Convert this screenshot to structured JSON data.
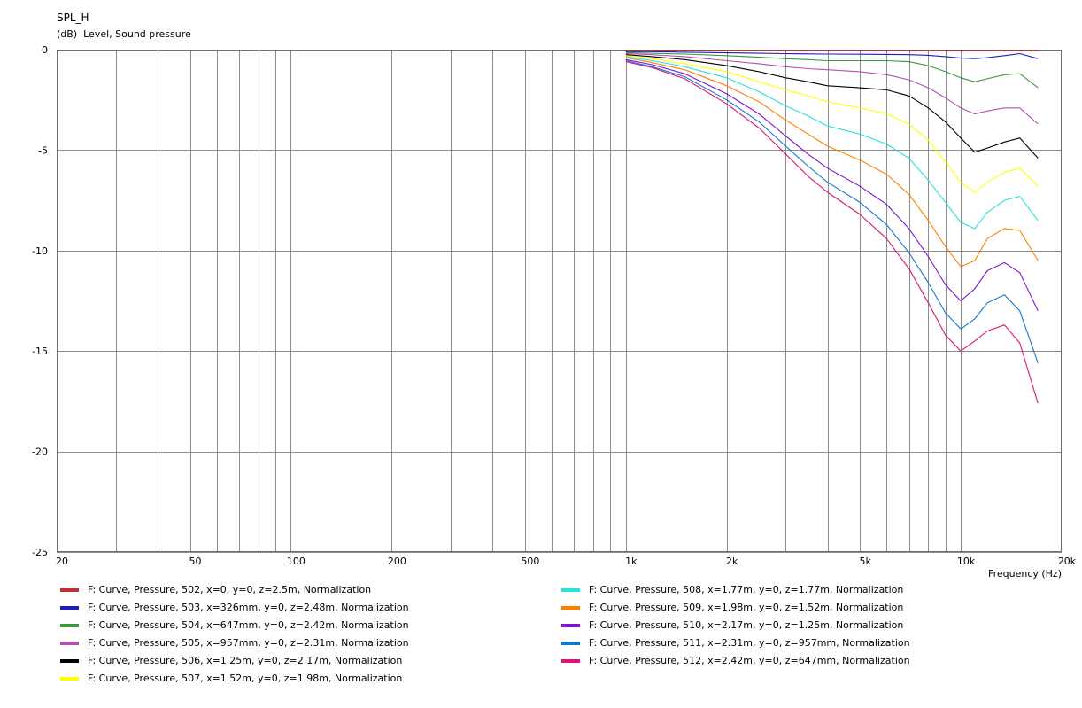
{
  "chart_data": {
    "type": "line",
    "title": "SPL_H",
    "ylabel": "(dB)  Level, Sound pressure",
    "xlabel": "Frequency  (Hz)",
    "xscale": "log",
    "xlim": [
      20,
      20000
    ],
    "ylim": [
      -25,
      0
    ],
    "grid": true,
    "legend_position": "bottom",
    "x_tick_labels": [
      {
        "value": 20,
        "label": "20"
      },
      {
        "value": 50,
        "label": "50"
      },
      {
        "value": 100,
        "label": "100"
      },
      {
        "value": 200,
        "label": "200"
      },
      {
        "value": 500,
        "label": "500"
      },
      {
        "value": 1000,
        "label": "1k"
      },
      {
        "value": 2000,
        "label": "2k"
      },
      {
        "value": 5000,
        "label": "5k"
      },
      {
        "value": 10000,
        "label": "10k"
      },
      {
        "value": 20000,
        "label": "20k"
      }
    ],
    "y_tick_labels": [
      {
        "value": 0,
        "label": "0"
      },
      {
        "value": -5,
        "label": "-5"
      },
      {
        "value": -10,
        "label": "-10"
      },
      {
        "value": -15,
        "label": "-15"
      },
      {
        "value": -20,
        "label": "-20"
      },
      {
        "value": -25,
        "label": "-25"
      }
    ],
    "x": [
      1000,
      1200,
      1500,
      2000,
      2500,
      3000,
      3500,
      4000,
      5000,
      6000,
      7000,
      8000,
      9000,
      10000,
      11000,
      12000,
      13500,
      15000,
      17000
    ],
    "series": [
      {
        "name": "F: Curve, Pressure, 502, x=0, y=0, z=2.5m, Normalization",
        "color": "#c0303a",
        "values": [
          -0.02,
          -0.02,
          -0.02,
          -0.02,
          -0.02,
          -0.02,
          -0.02,
          -0.02,
          -0.02,
          -0.02,
          -0.02,
          -0.02,
          -0.02,
          -0.02,
          -0.02,
          -0.02,
          -0.02,
          -0.02,
          -0.02
        ]
      },
      {
        "name": "F: Curve, Pressure, 503, x=326mm, y=0, z=2.48m, Normalization",
        "color": "#1e1ebe",
        "values": [
          -0.1,
          -0.1,
          -0.13,
          -0.16,
          -0.18,
          -0.2,
          -0.21,
          -0.22,
          -0.23,
          -0.24,
          -0.25,
          -0.28,
          -0.35,
          -0.42,
          -0.45,
          -0.4,
          -0.3,
          -0.2,
          -0.45
        ]
      },
      {
        "name": "F: Curve, Pressure, 504, x=647mm, y=0, z=2.42m, Normalization",
        "color": "#3c963c",
        "values": [
          -0.15,
          -0.18,
          -0.22,
          -0.3,
          -0.38,
          -0.45,
          -0.5,
          -0.55,
          -0.55,
          -0.55,
          -0.6,
          -0.8,
          -1.1,
          -1.4,
          -1.6,
          -1.45,
          -1.25,
          -1.2,
          -1.9
        ]
      },
      {
        "name": "F: Curve, Pressure, 505, x=957mm, y=0, z=2.31m, Normalization",
        "color": "#b450b4",
        "values": [
          -0.2,
          -0.25,
          -0.35,
          -0.55,
          -0.7,
          -0.85,
          -0.95,
          -1.0,
          -1.1,
          -1.25,
          -1.5,
          -1.9,
          -2.4,
          -2.9,
          -3.2,
          -3.05,
          -2.9,
          -2.9,
          -3.7
        ]
      },
      {
        "name": "F: Curve, Pressure, 506, x=1.25m, y=0, z=2.17m, Normalization",
        "color": "#000000",
        "values": [
          -0.25,
          -0.35,
          -0.5,
          -0.8,
          -1.1,
          -1.4,
          -1.6,
          -1.8,
          -1.9,
          -2.0,
          -2.3,
          -2.9,
          -3.6,
          -4.4,
          -5.1,
          -4.9,
          -4.6,
          -4.4,
          -5.4
        ]
      },
      {
        "name": "F: Curve, Pressure, 507, x=1.52m, y=0, z=1.98m, Normalization",
        "color": "#ffff00",
        "values": [
          -0.3,
          -0.45,
          -0.7,
          -1.1,
          -1.6,
          -2.0,
          -2.3,
          -2.6,
          -2.9,
          -3.2,
          -3.7,
          -4.5,
          -5.6,
          -6.6,
          -7.1,
          -6.6,
          -6.1,
          -5.9,
          -6.8
        ]
      },
      {
        "name": "F: Curve, Pressure, 508, x=1.77m, y=0, z=1.77m, Normalization",
        "color": "#28e0e0",
        "values": [
          -0.35,
          -0.55,
          -0.85,
          -1.4,
          -2.1,
          -2.8,
          -3.3,
          -3.8,
          -4.2,
          -4.7,
          -5.4,
          -6.5,
          -7.6,
          -8.6,
          -8.9,
          -8.1,
          -7.5,
          -7.3,
          -8.5
        ]
      },
      {
        "name": "F: Curve, Pressure, 509, x=1.98m, y=0, z=1.52m, Normalization",
        "color": "#ff8000",
        "values": [
          -0.4,
          -0.65,
          -1.0,
          -1.8,
          -2.6,
          -3.5,
          -4.2,
          -4.8,
          -5.5,
          -6.2,
          -7.2,
          -8.5,
          -9.8,
          -10.8,
          -10.5,
          -9.4,
          -8.9,
          -9.0,
          -10.5
        ]
      },
      {
        "name": "F: Curve, Pressure, 510, x=2.17m, y=0, z=1.25m, Normalization",
        "color": "#7d14d2",
        "values": [
          -0.5,
          -0.75,
          -1.2,
          -2.2,
          -3.2,
          -4.3,
          -5.2,
          -5.9,
          -6.8,
          -7.7,
          -8.9,
          -10.3,
          -11.7,
          -12.5,
          -11.9,
          -11.0,
          -10.6,
          -11.1,
          -13.0
        ]
      },
      {
        "name": "F: Curve, Pressure, 511, x=2.31m, y=0, z=957mm, Normalization",
        "color": "#1478d2",
        "values": [
          -0.55,
          -0.85,
          -1.35,
          -2.5,
          -3.6,
          -4.8,
          -5.8,
          -6.6,
          -7.6,
          -8.7,
          -10.1,
          -11.6,
          -13.1,
          -13.9,
          -13.4,
          -12.6,
          -12.2,
          -13.0,
          -15.6
        ]
      },
      {
        "name": "F: Curve, Pressure, 512, x=2.42m, y=0, z=647mm, Normalization",
        "color": "#dc1478",
        "values": [
          -0.6,
          -0.9,
          -1.45,
          -2.7,
          -3.9,
          -5.2,
          -6.3,
          -7.1,
          -8.2,
          -9.4,
          -10.9,
          -12.6,
          -14.2,
          -15.0,
          -14.5,
          -14.0,
          -13.7,
          -14.6,
          -17.6
        ]
      }
    ]
  }
}
